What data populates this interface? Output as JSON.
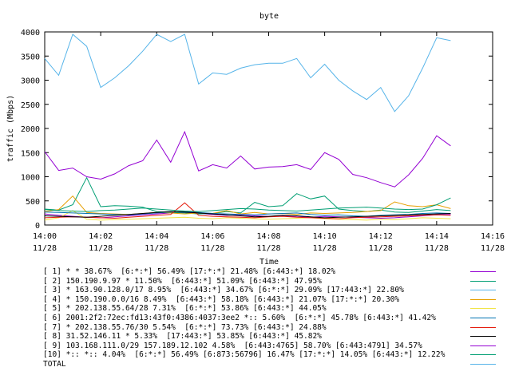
{
  "chart_data": {
    "type": "line",
    "title": "byte",
    "xlabel": "Time",
    "ylabel": "traffic (Mbps)",
    "ylim": [
      0,
      4000
    ],
    "yticks": [
      "0",
      "500",
      "1000",
      "1500",
      "2000",
      "2500",
      "3000",
      "3500",
      "4000"
    ],
    "xlim": [
      "14:00",
      "14:16"
    ],
    "xticks": [
      {
        "time": "14:00",
        "date": "11/28"
      },
      {
        "time": "14:02",
        "date": "11/28"
      },
      {
        "time": "14:04",
        "date": "11/28"
      },
      {
        "time": "14:06",
        "date": "11/28"
      },
      {
        "time": "14:08",
        "date": "11/28"
      },
      {
        "time": "14:10",
        "date": "11/28"
      },
      {
        "time": "14:12",
        "date": "11/28"
      },
      {
        "time": "14:14",
        "date": "11/28"
      },
      {
        "time": "14:16",
        "date": "11/28"
      }
    ],
    "x": [
      "14:00:00",
      "14:00:30",
      "14:01:00",
      "14:01:30",
      "14:02:00",
      "14:02:30",
      "14:03:00",
      "14:03:30",
      "14:04:00",
      "14:04:30",
      "14:05:00",
      "14:05:30",
      "14:06:00",
      "14:06:30",
      "14:07:00",
      "14:07:30",
      "14:08:00",
      "14:08:30",
      "14:09:00",
      "14:09:30",
      "14:10:00",
      "14:10:30",
      "14:11:00",
      "14:11:30",
      "14:12:00",
      "14:12:30",
      "14:13:00",
      "14:13:30",
      "14:14:00",
      "14:14:30"
    ],
    "legend_position": "bottom",
    "series": [
      {
        "name": "[ 1] * * 38.67%  [6:*:*] 56.49% [17:*:*] 21.48% [6:443:*] 18.02%",
        "color": "#9400d3",
        "values": [
          230,
          200,
          180,
          160,
          150,
          170,
          190,
          210,
          230,
          250,
          260,
          240,
          220,
          200,
          210,
          190,
          180,
          190,
          170,
          160,
          180,
          170,
          160,
          150,
          140,
          150,
          170,
          190,
          210,
          220
        ]
      },
      {
        "name": "[ 2] 150.190.9.97 * 11.50%  [6:443:*] 51.09% [6:443:*] 47.95%",
        "color": "#009e73",
        "values": [
          330,
          310,
          420,
          980,
          380,
          400,
          390,
          370,
          280,
          260,
          250,
          230,
          240,
          280,
          250,
          470,
          380,
          400,
          650,
          540,
          600,
          330,
          300,
          280,
          310,
          270,
          260,
          290,
          320,
          300
        ]
      },
      {
        "name": "[ 3] * 163.90.128.0/17 8.95%  [6:443:*] 34.67% [6:*:*] 29.09% [17:443:*] 22.80%",
        "color": "#56b4e9",
        "values": [
          3450,
          3100,
          3950,
          3700,
          2850,
          3050,
          3300,
          3600,
          3950,
          3800,
          3950,
          2920,
          3150,
          3120,
          3250,
          3320,
          3350,
          3350,
          3450,
          3050,
          3330,
          3000,
          2780,
          2600,
          2850,
          2350,
          2680,
          3250,
          3880,
          3820
        ]
      },
      {
        "name": "[ 4] * 150.190.0.0/16 8.49%  [6:443:*] 58.18% [6:443:*] 21.07% [17:*:*] 20.30%",
        "color": "#e69f00",
        "values": [
          280,
          320,
          600,
          260,
          240,
          230,
          220,
          240,
          260,
          250,
          230,
          250,
          240,
          300,
          230,
          260,
          230,
          240,
          220,
          250,
          240,
          250,
          260,
          280,
          300,
          480,
          400,
          380,
          420,
          340
        ]
      },
      {
        "name": "[ 5] * 202.138.55.64/28 7.31%  [6:*:*] 53.86% [6:443:*] 44.05%",
        "color": "#f0e442",
        "values": [
          100,
          150,
          300,
          120,
          100,
          110,
          120,
          130,
          140,
          150,
          160,
          140,
          130,
          150,
          140,
          130,
          120,
          130,
          140,
          150,
          130,
          120,
          110,
          100,
          120,
          110,
          130,
          150,
          140,
          130
        ]
      },
      {
        "name": "[ 6] 2001:2f2:72ec:fd13:43f0:4386:4037:3ee2 *:: 5.60%  [6:*:*] 45.78% [6:443:*] 41.42%",
        "color": "#0072b2",
        "values": [
          270,
          260,
          250,
          240,
          230,
          220,
          210,
          230,
          250,
          270,
          280,
          260,
          240,
          230,
          220,
          210,
          230,
          240,
          250,
          220,
          200,
          210,
          190,
          180,
          200,
          210,
          220,
          240,
          250,
          240
        ]
      },
      {
        "name": "[ 7] * 202.138.55.76/30 5.54%  [6:*:*] 73.73% [6:443:*] 24.88%",
        "color": "#e51e10",
        "values": [
          150,
          160,
          170,
          160,
          150,
          140,
          160,
          180,
          200,
          220,
          460,
          200,
          180,
          170,
          160,
          150,
          170,
          180,
          160,
          150,
          140,
          130,
          150,
          160,
          170,
          180,
          190,
          200,
          210,
          200
        ]
      },
      {
        "name": "[ 8] 31.52.146.11 * 5.33%  [17:443:*] 53.85% [6:443:*] 45.82%",
        "color": "#000000",
        "values": [
          190,
          180,
          170,
          160,
          180,
          200,
          220,
          240,
          260,
          280,
          270,
          250,
          230,
          210,
          190,
          170,
          180,
          200,
          190,
          170,
          150,
          160,
          170,
          180,
          190,
          200,
          210,
          220,
          230,
          240
        ]
      },
      {
        "name": "[ 9] 103.168.111.0/29 157.189.12.102 4.58%  [6:443:4765] 58.70% [6:443:4791] 34.57%",
        "color": "#9400d3",
        "values": [
          1520,
          1130,
          1180,
          1000,
          950,
          1060,
          1230,
          1330,
          1760,
          1300,
          1930,
          1120,
          1250,
          1180,
          1430,
          1160,
          1200,
          1210,
          1250,
          1150,
          1500,
          1360,
          1050,
          980,
          880,
          790,
          1040,
          1380,
          1850,
          1640
        ]
      },
      {
        "name": "[10] *:: *:: 4.04%  [6:*:*] 56.49% [6:873:56796] 16.47% [17:*:*] 14.05% [6:443:*] 12.22%",
        "color": "#009e73",
        "values": [
          320,
          300,
          290,
          280,
          300,
          310,
          330,
          350,
          330,
          310,
          290,
          280,
          300,
          320,
          340,
          330,
          310,
          300,
          290,
          310,
          330,
          350,
          360,
          370,
          350,
          330,
          320,
          330,
          420,
          560
        ]
      }
    ],
    "total_label": "TOTAL"
  }
}
